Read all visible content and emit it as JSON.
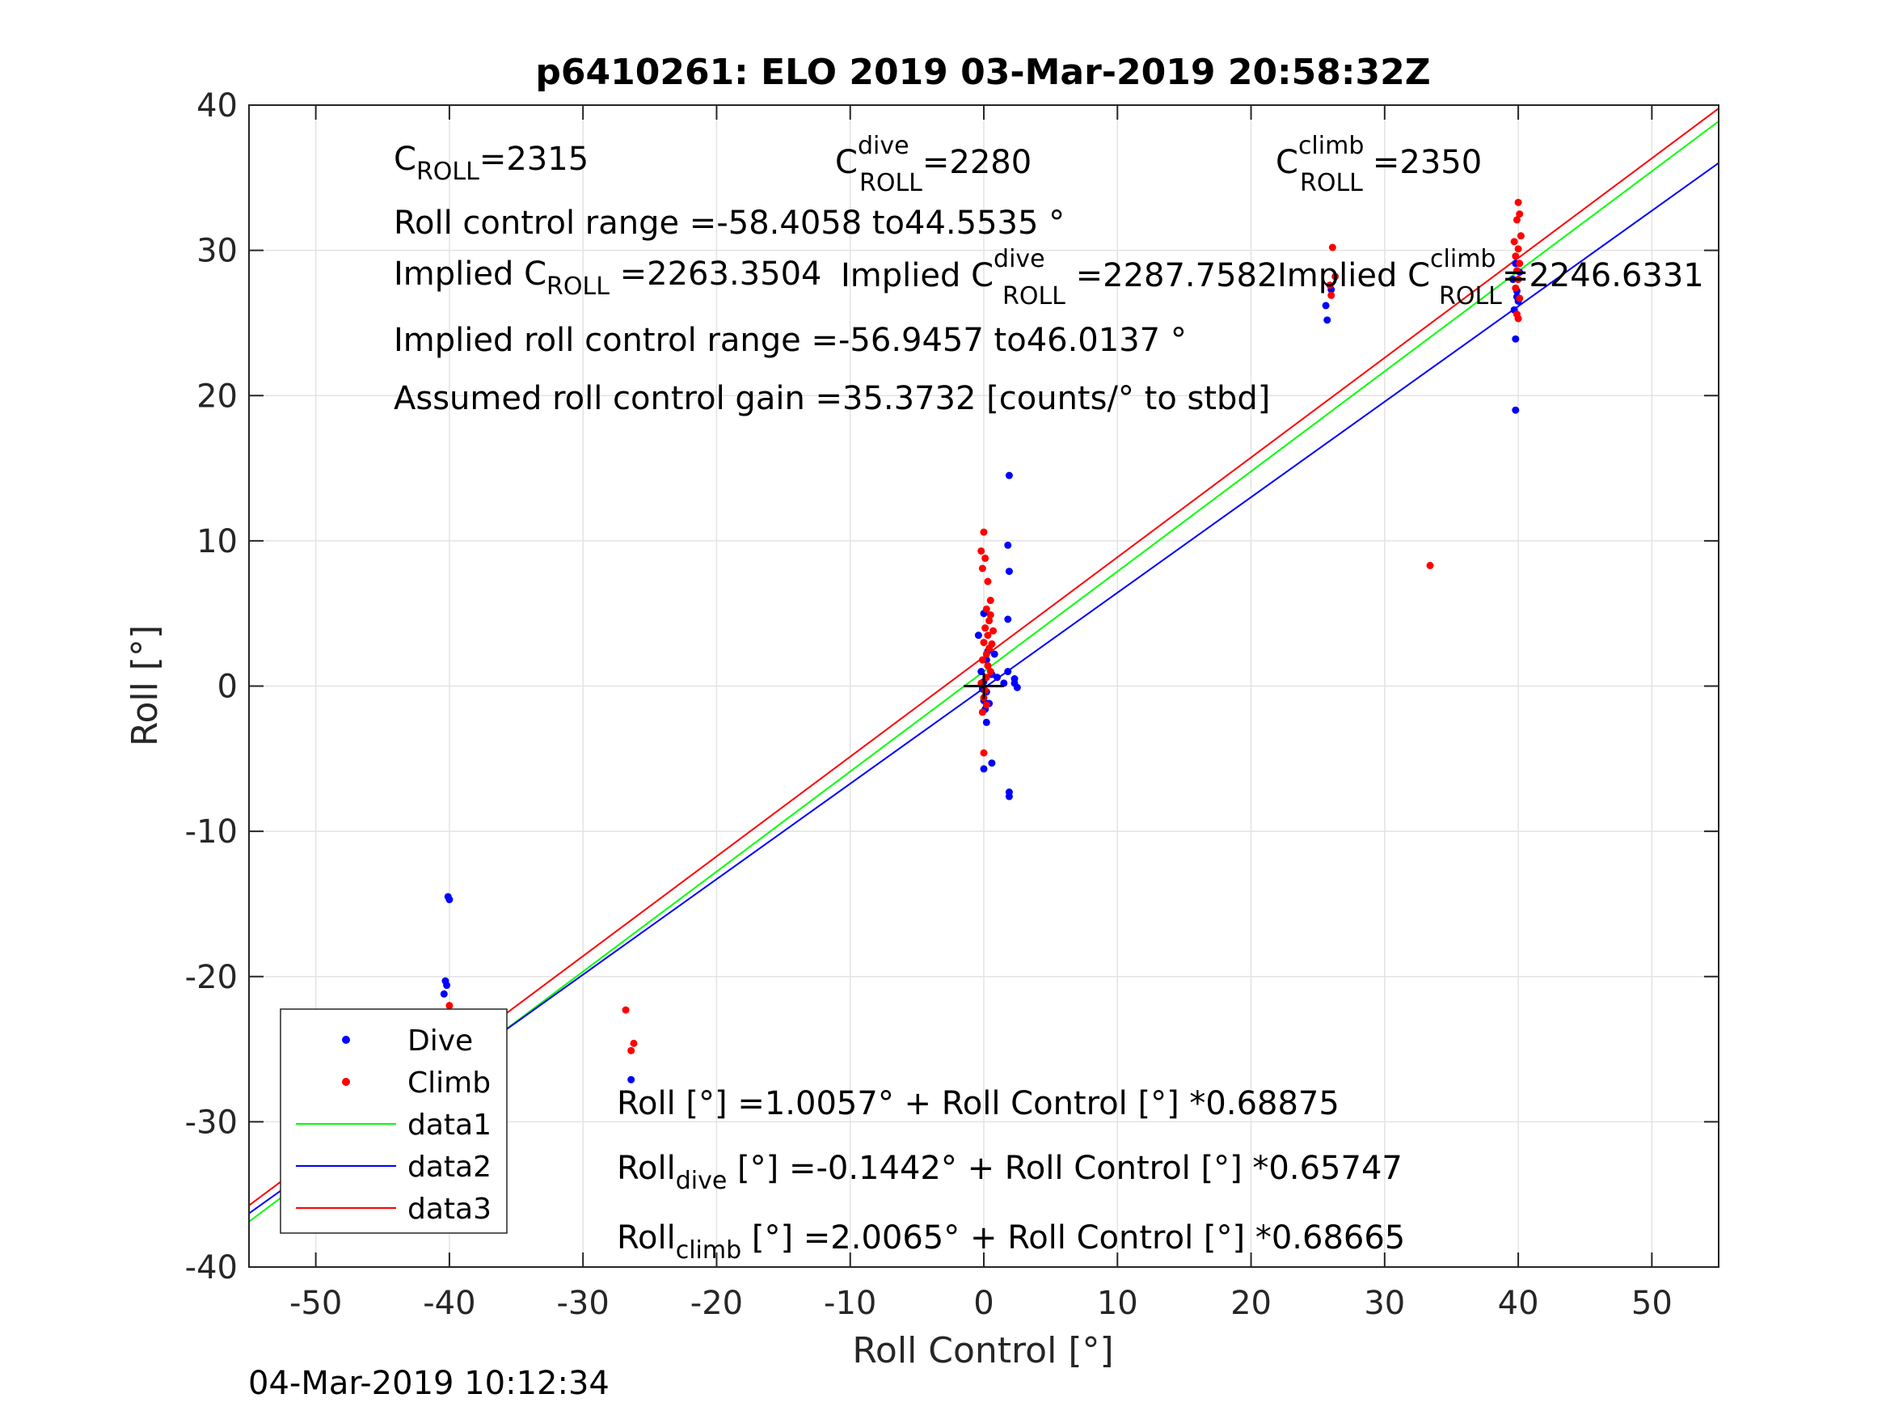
{
  "chart_data": {
    "type": "scatter",
    "title": "p6410261: ELO 2019 03-Mar-2019 20:58:32Z",
    "xlabel": "Roll Control [°]",
    "ylabel": "Roll [°]",
    "xlim": [
      -55,
      55
    ],
    "ylim": [
      -40,
      40
    ],
    "xticks": [
      -50,
      -40,
      -30,
      -20,
      -10,
      0,
      10,
      20,
      30,
      40,
      50
    ],
    "yticks": [
      -40,
      -30,
      -20,
      -10,
      0,
      10,
      20,
      30,
      40
    ],
    "grid": true,
    "legend_position": "bottom-left",
    "series": [
      {
        "name": "Dive",
        "kind": "points",
        "color": "#0000ff",
        "points": [
          [
            -40.1,
            -14.5
          ],
          [
            -40.0,
            -14.7
          ],
          [
            -40.3,
            -20.3
          ],
          [
            -40.2,
            -20.6
          ],
          [
            -40.4,
            -21.2
          ],
          [
            -40.1,
            -22.9
          ],
          [
            -40.3,
            -24.2
          ],
          [
            -40.0,
            -25.0
          ],
          [
            -40.5,
            -25.6
          ],
          [
            -39.8,
            -26.4
          ],
          [
            -40.2,
            -26.9
          ],
          [
            -40.1,
            -27.4
          ],
          [
            -39.6,
            -27.8
          ],
          [
            -39.4,
            -28.2
          ],
          [
            -40.3,
            -28.6
          ],
          [
            -40.0,
            -29.0
          ],
          [
            -39.7,
            -29.5
          ],
          [
            -40.4,
            -30.0
          ],
          [
            -40.1,
            -31.0
          ],
          [
            -40.2,
            -32.1
          ],
          [
            -39.5,
            -27.2
          ],
          [
            -39.9,
            -28.9
          ],
          [
            -26.4,
            -27.1
          ],
          [
            -0.4,
            3.5
          ],
          [
            -0.2,
            1.0
          ],
          [
            0.0,
            0.3
          ],
          [
            0.2,
            -0.4
          ],
          [
            0.0,
            -1.0
          ],
          [
            0.1,
            -1.6
          ],
          [
            0.2,
            -2.5
          ],
          [
            0.4,
            -1.2
          ],
          [
            0.6,
            0.8
          ],
          [
            0.3,
            2.4
          ],
          [
            0.0,
            5.0
          ],
          [
            0.2,
            1.8
          ],
          [
            -0.1,
            -0.2
          ],
          [
            0.0,
            -5.7
          ],
          [
            0.6,
            -5.3
          ],
          [
            1.0,
            0.6
          ],
          [
            0.8,
            2.2
          ],
          [
            1.5,
            0.2
          ],
          [
            1.9,
            14.5
          ],
          [
            1.8,
            9.7
          ],
          [
            1.9,
            7.9
          ],
          [
            1.8,
            4.6
          ],
          [
            1.8,
            1.0
          ],
          [
            1.9,
            -7.3
          ],
          [
            1.9,
            -7.6
          ],
          [
            2.3,
            0.5
          ],
          [
            2.3,
            0.2
          ],
          [
            2.5,
            -0.1
          ],
          [
            25.6,
            26.2
          ],
          [
            25.7,
            25.2
          ],
          [
            26.0,
            27.3
          ],
          [
            39.8,
            19.0
          ],
          [
            39.8,
            23.9
          ],
          [
            39.7,
            25.9
          ],
          [
            40.0,
            26.5
          ],
          [
            39.9,
            27.2
          ],
          [
            39.6,
            28.0
          ],
          [
            40.1,
            28.5
          ],
          [
            39.8,
            29.1
          ],
          [
            39.9,
            26.8
          ]
        ]
      },
      {
        "name": "Climb",
        "kind": "points",
        "color": "#ff0000",
        "points": [
          [
            -40.0,
            -22.0
          ],
          [
            -40.2,
            -23.1
          ],
          [
            -39.9,
            -23.6
          ],
          [
            -40.1,
            -24.2
          ],
          [
            -40.3,
            -24.8
          ],
          [
            -39.8,
            -25.4
          ],
          [
            -40.1,
            -25.9
          ],
          [
            -40.4,
            -26.3
          ],
          [
            -39.9,
            -26.8
          ],
          [
            -40.2,
            -27.2
          ],
          [
            -39.7,
            -25.0
          ],
          [
            -40.1,
            -23.8
          ],
          [
            -26.8,
            -22.3
          ],
          [
            -26.2,
            -24.6
          ],
          [
            -26.4,
            -25.1
          ],
          [
            0.0,
            10.6
          ],
          [
            -0.2,
            9.3
          ],
          [
            0.1,
            8.8
          ],
          [
            -0.1,
            8.1
          ],
          [
            0.3,
            7.2
          ],
          [
            0.5,
            5.9
          ],
          [
            0.2,
            5.3
          ],
          [
            0.4,
            4.5
          ],
          [
            0.1,
            4.0
          ],
          [
            0.3,
            3.5
          ],
          [
            0.0,
            3.0
          ],
          [
            0.4,
            2.6
          ],
          [
            0.2,
            2.2
          ],
          [
            -0.1,
            1.8
          ],
          [
            0.3,
            1.4
          ],
          [
            0.5,
            1.0
          ],
          [
            0.2,
            0.6
          ],
          [
            -0.2,
            0.2
          ],
          [
            0.1,
            -0.3
          ],
          [
            0.0,
            -0.8
          ],
          [
            0.2,
            -1.3
          ],
          [
            -0.1,
            -1.8
          ],
          [
            0.0,
            -4.6
          ],
          [
            0.6,
            2.9
          ],
          [
            0.5,
            4.9
          ],
          [
            0.7,
            3.8
          ],
          [
            26.1,
            30.2
          ],
          [
            26.3,
            28.2
          ],
          [
            25.9,
            27.6
          ],
          [
            26.0,
            26.9
          ],
          [
            33.4,
            8.3
          ],
          [
            40.0,
            33.3
          ],
          [
            40.1,
            32.5
          ],
          [
            39.9,
            32.1
          ],
          [
            40.2,
            31.0
          ],
          [
            39.7,
            30.6
          ],
          [
            40.0,
            30.1
          ],
          [
            39.8,
            29.6
          ],
          [
            40.1,
            29.1
          ],
          [
            39.9,
            28.6
          ],
          [
            40.0,
            28.0
          ],
          [
            39.8,
            27.4
          ],
          [
            40.1,
            26.7
          ],
          [
            40.0,
            25.3
          ],
          [
            39.9,
            25.6
          ]
        ]
      },
      {
        "name": "data1",
        "kind": "line",
        "color": "#00ff00",
        "intercept": 1.0057,
        "slope": 0.68875
      },
      {
        "name": "data2",
        "kind": "line",
        "color": "#0000ff",
        "intercept": -0.1442,
        "slope": 0.65747
      },
      {
        "name": "data3",
        "kind": "line",
        "color": "#ff0000",
        "intercept": 2.0065,
        "slope": 0.68665
      }
    ],
    "annotations": {
      "c_roll": {
        "base": "C",
        "sub": "ROLL",
        "sup": "",
        "value": "=2315"
      },
      "c_roll_dive": {
        "base": "C",
        "sub": "ROLL",
        "sup": "dive",
        "value": "=2280"
      },
      "c_roll_climb": {
        "base": "C",
        "sub": "ROLL",
        "sup": "climb",
        "value": "=2350"
      },
      "roll_control_range": "Roll control range =-58.4058 to44.5535 °",
      "implied_c_roll": {
        "prefix": "Implied C",
        "sub": "ROLL",
        "sup": "",
        "value": " =2263.3504"
      },
      "implied_c_roll_dive": {
        "prefix": "Implied C",
        "sub": "ROLL",
        "sup": "dive",
        "value": " =2287.7582"
      },
      "implied_c_roll_climb": {
        "prefix": "Implied C",
        "sub": "ROLL",
        "sup": "climb",
        "value": "=2246.6331"
      },
      "implied_range": "Implied roll control range =-56.9457 to46.0137 °",
      "gain": "Assumed roll control gain =35.3732 [counts/° to stbd]",
      "fit_all": {
        "base": "Roll",
        "sub": "",
        "rest": " [°] =1.0057° + Roll Control [°] *0.68875"
      },
      "fit_dive": {
        "base": "Roll",
        "sub": "dive",
        "rest": " [°] =-0.1442° + Roll Control [°] *0.65747"
      },
      "fit_climb": {
        "base": "Roll",
        "sub": "climb",
        "rest": " [°] =2.0065° + Roll Control [°] *0.68665"
      }
    },
    "timestamp": "04-Mar-2019 10:12:34"
  }
}
